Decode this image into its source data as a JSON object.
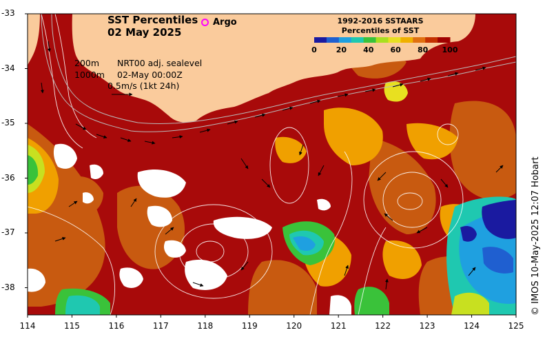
{
  "map": {
    "title_line1": "SST Percentiles",
    "title_line2": "02 May 2025",
    "argo_label": "Argo",
    "contours": [
      "200m",
      "1000m"
    ],
    "run_info": [
      "NRT00 adj. sealevel",
      "02-May 00:00Z"
    ],
    "vector_scale": "0.5m/s (1kt 24h)",
    "credit": "© IMOS 10-May-2025 12:07 Hobart"
  },
  "colorbar": {
    "title_line1": "1992-2016 SSTAARS",
    "title_line2": "Percentiles of SST",
    "ticks": [
      "0",
      "20",
      "40",
      "60",
      "80",
      "100"
    ],
    "colors": [
      "#1a1aa0",
      "#1f5fd0",
      "#1fa0e0",
      "#1fc8b0",
      "#3ac23a",
      "#a8e020",
      "#e8e020",
      "#f0b000",
      "#e07010",
      "#c43000",
      "#a00000"
    ]
  },
  "axes": {
    "x_ticks": [
      "114",
      "115",
      "116",
      "117",
      "118",
      "119",
      "120",
      "121",
      "122",
      "123",
      "124",
      "125"
    ],
    "y_ticks": [
      "-33",
      "-34",
      "-35",
      "-36",
      "-37",
      "-38"
    ],
    "x_range": [
      114,
      125
    ],
    "y_range": [
      -38.5,
      -33
    ]
  },
  "colors": {
    "land": "#facb9c",
    "ocean_main": "#a80a0a",
    "ocean_warm": "#c85a10",
    "orange": "#f0a000",
    "cool": "#20b0e0",
    "cold": "#2020a0"
  }
}
